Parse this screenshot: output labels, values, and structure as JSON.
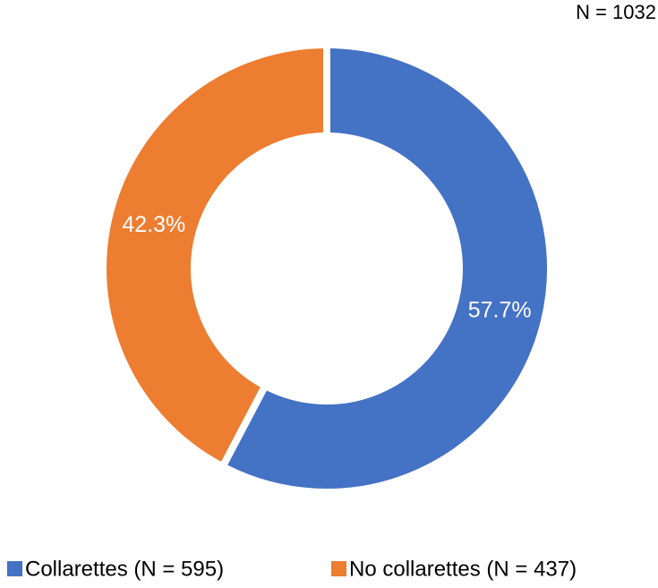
{
  "chart_data": {
    "type": "donut",
    "annotation": "N = 1032",
    "categories": [
      "Collarettes (N = 595)",
      "No collarettes (N = 437)"
    ],
    "values": [
      57.7,
      42.3
    ],
    "value_labels": [
      "57.7%",
      "42.3%"
    ],
    "colors": [
      "#4472c4",
      "#ed7d31"
    ],
    "legend": "bottom"
  }
}
